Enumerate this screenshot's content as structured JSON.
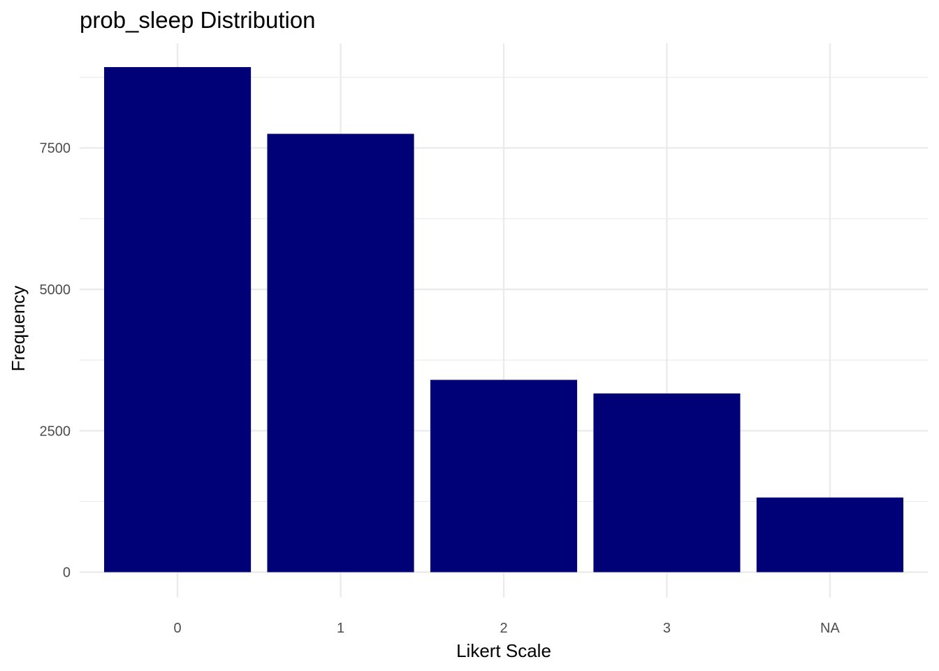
{
  "chart_data": {
    "type": "bar",
    "title": "prob_sleep Distribution",
    "xlabel": "Likert Scale",
    "ylabel": "Frequency",
    "categories": [
      "0",
      "1",
      "2",
      "3",
      "NA"
    ],
    "values": [
      8930,
      7750,
      3400,
      3160,
      1320
    ],
    "ylim": [
      -450,
      9350
    ],
    "yticks": [
      0,
      2500,
      5000,
      7500
    ],
    "yticks_minor": [
      1250,
      3750,
      6250,
      8750
    ],
    "ytick_labels": [
      "0",
      "2500",
      "5000",
      "7500"
    ],
    "grid": true,
    "legend": "none",
    "bar_color": "#000077",
    "background_color": "#ffffff",
    "grid_color": "#ebebeb"
  }
}
